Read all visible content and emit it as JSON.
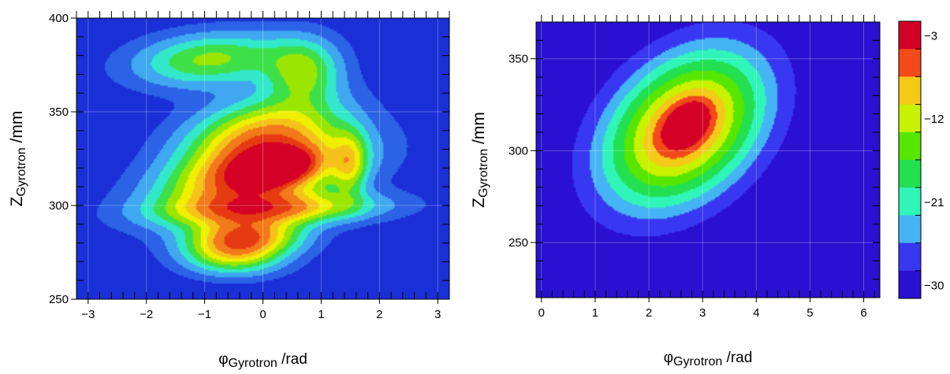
{
  "chart_data": [
    {
      "type": "heatmap",
      "xlabel": {
        "symbol": "φ",
        "subscript": "Gyrotron",
        "unit": " /rad"
      },
      "ylabel": {
        "symbol": "Z",
        "subscript": "Gyrotron",
        "unit": " /mm"
      },
      "xlim": [
        -3.2,
        3.2
      ],
      "ylim": [
        250,
        400
      ],
      "xticks": [
        -3,
        -2,
        -1,
        0,
        1,
        2,
        3
      ],
      "xtick_labels": [
        "−3",
        "−2",
        "−1",
        "0",
        "1",
        "2",
        "3"
      ],
      "yticks": [
        250,
        300,
        350,
        400
      ],
      "ytick_labels": [
        "250",
        "300",
        "350",
        "400"
      ],
      "grid": true,
      "background_color": "#1a2fd6",
      "blobs": [
        {
          "x": -0.9,
          "y": 378,
          "sx": 0.9,
          "sy": 10,
          "rho": 0.2,
          "amp": 0.38
        },
        {
          "x": 0.7,
          "y": 372,
          "sx": 0.45,
          "sy": 12,
          "rho": 0.0,
          "amp": 0.35
        },
        {
          "x": 0.0,
          "y": 338,
          "sx": 0.9,
          "sy": 14,
          "rho": 0.3,
          "amp": 0.55
        },
        {
          "x": -0.1,
          "y": 315,
          "sx": 1.1,
          "sy": 14,
          "rho": 0.45,
          "amp": 0.72
        },
        {
          "x": 0.2,
          "y": 320,
          "sx": 0.4,
          "sy": 6,
          "rho": 0.3,
          "amp": 0.55
        },
        {
          "x": 0.2,
          "y": 298,
          "sx": 1.2,
          "sy": 6,
          "rho": 0.2,
          "amp": 0.5
        },
        {
          "x": -0.3,
          "y": 283,
          "sx": 0.65,
          "sy": 7,
          "rho": 0.1,
          "amp": 0.62
        },
        {
          "x": -0.5,
          "y": 272,
          "sx": 0.6,
          "sy": 7,
          "rho": 0.0,
          "amp": 0.35
        },
        {
          "x": 1.5,
          "y": 322,
          "sx": 0.2,
          "sy": 12,
          "rho": 0.0,
          "amp": 0.3
        }
      ]
    },
    {
      "type": "heatmap",
      "xlabel": {
        "symbol": "φ",
        "subscript": "Gyrotron",
        "unit": " /rad"
      },
      "ylabel": {
        "symbol": "Z",
        "subscript": "Gyrotron",
        "unit": " /mm"
      },
      "xlim": [
        -0.1,
        6.3
      ],
      "ylim": [
        220,
        370
      ],
      "xticks": [
        0,
        1,
        2,
        3,
        4,
        5,
        6
      ],
      "xtick_labels": [
        "0",
        "1",
        "2",
        "3",
        "4",
        "5",
        "6"
      ],
      "yticks": [
        250,
        300,
        350
      ],
      "ytick_labels": [
        "250",
        "300",
        "350"
      ],
      "grid": true,
      "background_color": "#2a10d0",
      "blobs": [
        {
          "x": 2.65,
          "y": 312,
          "sx": 0.85,
          "sy": 24,
          "rho": 0.35,
          "amp": 1.0
        },
        {
          "x": 2.8,
          "y": 318,
          "sx": 0.3,
          "sy": 9,
          "rho": 0.3,
          "amp": 0.12
        }
      ],
      "colorbar": {
        "colors": [
          "#d40026",
          "#f24a1a",
          "#f5c918",
          "#c8f200",
          "#56e600",
          "#22e050",
          "#30f5b8",
          "#45b4f5",
          "#3838f2",
          "#2a10d0"
        ],
        "tick_labels": [
          "−3",
          "−12",
          "−21",
          "−30"
        ],
        "tick_positions": [
          1,
          4,
          7,
          10
        ]
      }
    }
  ]
}
